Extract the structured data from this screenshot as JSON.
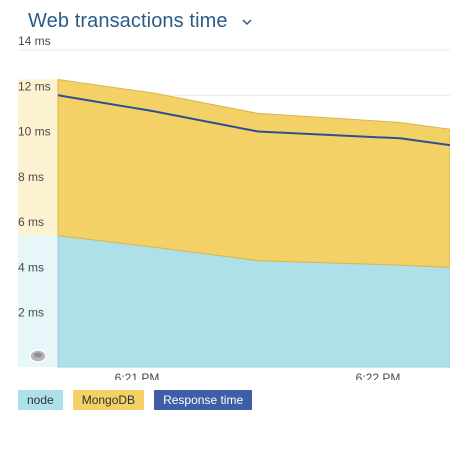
{
  "header": {
    "title": "Web transactions time"
  },
  "icons": {
    "dropdown": "chevron-down-icon",
    "handle": "drag-handle-icon"
  },
  "colors": {
    "node": "#aee0ea",
    "mongodb": "#f3d166",
    "response_time": "#2f4f95",
    "hover_node": "#e6f6f9",
    "hover_mongodb": "#fcf1d0",
    "grid": "#e8e8e8"
  },
  "chart_data": {
    "type": "area",
    "stacked": true,
    "y_unit": "ms",
    "ylim": [
      0,
      14
    ],
    "yticks": [
      2,
      4,
      6,
      8,
      10,
      12,
      14
    ],
    "ytick_labels": [
      "2 ms",
      "4 ms",
      "6 ms",
      "8 ms",
      "10 ms",
      "12 ms",
      "14 ms"
    ],
    "x_tick_labels": [
      "6:21 PM",
      "6:22 PM"
    ],
    "x": [
      "6:20:30 PM",
      "6:21 PM",
      "6:21:30 PM",
      "6:22 PM",
      "6:22:30 PM"
    ],
    "series": [
      {
        "name": "node",
        "kind": "area",
        "values": [
          5.8,
          5.3,
          4.7,
          4.5,
          4.4
        ]
      },
      {
        "name": "MongoDB",
        "kind": "area",
        "values": [
          6.9,
          6.8,
          6.5,
          6.3,
          6.1
        ]
      },
      {
        "name": "Response time",
        "kind": "line",
        "values": [
          12.0,
          11.3,
          10.4,
          10.1,
          9.8
        ]
      }
    ],
    "highlight_x_index": 0,
    "grid": true,
    "legend_position": "bottom-left"
  }
}
